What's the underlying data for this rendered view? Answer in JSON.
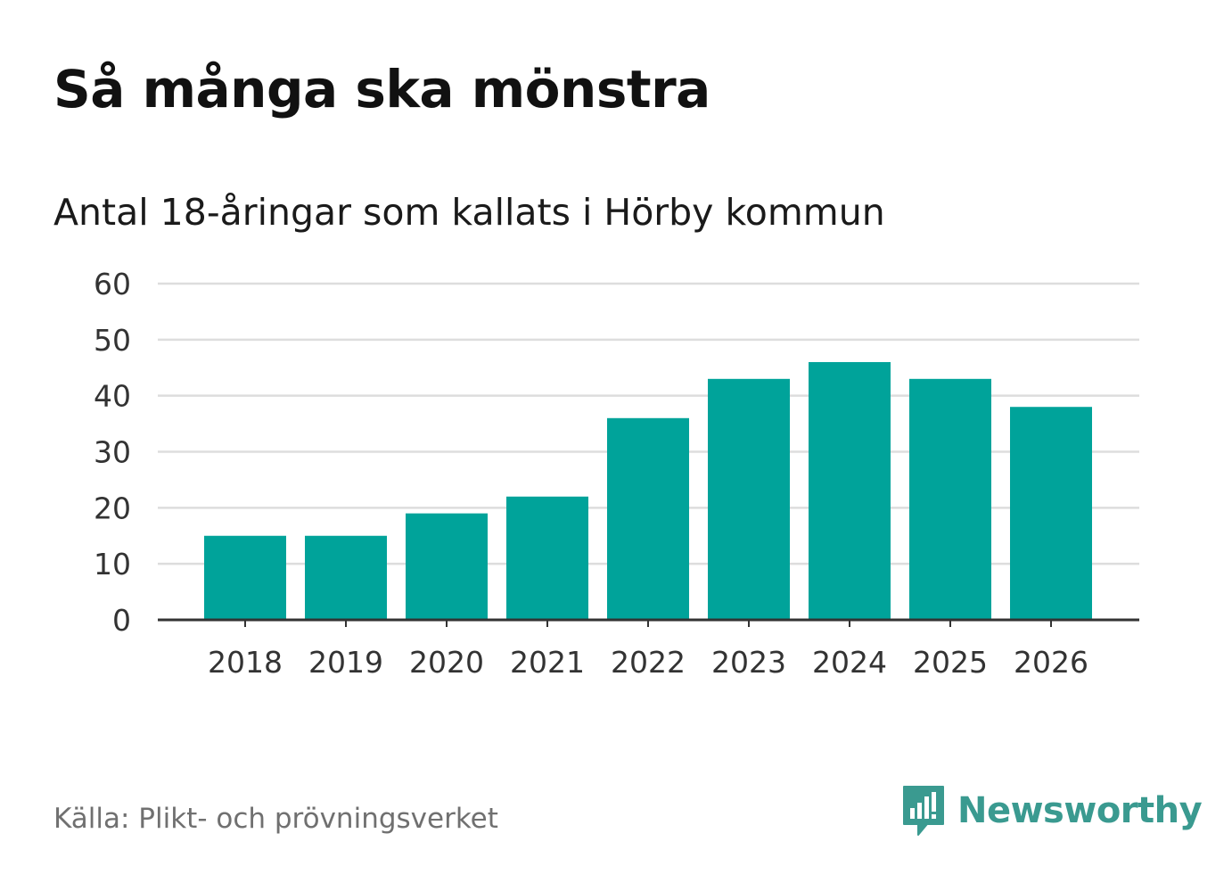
{
  "header": {
    "title": "Så många ska mönstra",
    "subtitle": "Antal 18-åringar som kallats i Hörby kommun"
  },
  "footer": {
    "source": "Källa: Plikt- och prövningsverket",
    "brand": "Newsworthy"
  },
  "colors": {
    "bar": "#00a39a",
    "grid": "#dddddd",
    "axis": "#333333",
    "brand": "#3a9a90"
  },
  "chart_data": {
    "type": "bar",
    "title": "Så många ska mönstra",
    "subtitle": "Antal 18-åringar som kallats i Hörby kommun",
    "xlabel": "",
    "ylabel": "",
    "categories": [
      "2018",
      "2019",
      "2020",
      "2021",
      "2022",
      "2023",
      "2024",
      "2025",
      "2026"
    ],
    "values": [
      15,
      15,
      19,
      22,
      36,
      43,
      46,
      43,
      38
    ],
    "ylim": [
      0,
      60
    ],
    "yticks": [
      0,
      10,
      20,
      30,
      40,
      50,
      60
    ],
    "grid": true
  }
}
